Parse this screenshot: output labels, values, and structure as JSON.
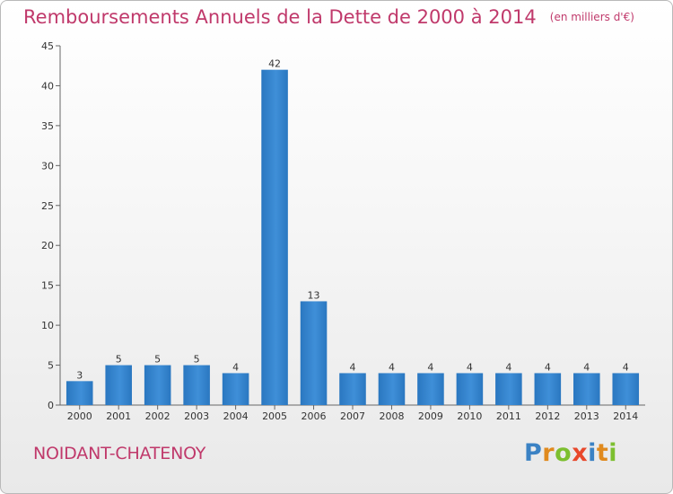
{
  "title": "Remboursements Annuels de la Dette de 2000 à 2014",
  "unit": "(en milliers d'€)",
  "commune": "NOIDANT-CHATENOY",
  "logo": {
    "text": "Proxiti",
    "letters": [
      {
        "char": "P",
        "color": "#3b82c4"
      },
      {
        "char": "r",
        "color": "#e08a1e"
      },
      {
        "char": "o",
        "color": "#7cbf2f"
      },
      {
        "char": "x",
        "color": "#e8482b"
      },
      {
        "char": "i",
        "color": "#3b82c4"
      },
      {
        "char": "t",
        "color": "#e08a1e"
      },
      {
        "char": "i",
        "color": "#7cbf2f"
      }
    ]
  },
  "colors": {
    "bar": "#3f8fd8",
    "bar_dark": "#2a77c0",
    "accent": "#c0396b",
    "grid": "#d9d9d9"
  },
  "chart_data": {
    "type": "bar",
    "categories": [
      "2000",
      "2001",
      "2002",
      "2003",
      "2004",
      "2005",
      "2006",
      "2007",
      "2008",
      "2009",
      "2010",
      "2011",
      "2012",
      "2013",
      "2014"
    ],
    "values": [
      3,
      5,
      5,
      5,
      4,
      42,
      13,
      4,
      4,
      4,
      4,
      4,
      4,
      4,
      4
    ],
    "ylim": [
      0,
      45
    ],
    "yticks": [
      0,
      5,
      10,
      15,
      20,
      25,
      30,
      35,
      40,
      45
    ],
    "grid": false,
    "data_labels": true
  }
}
